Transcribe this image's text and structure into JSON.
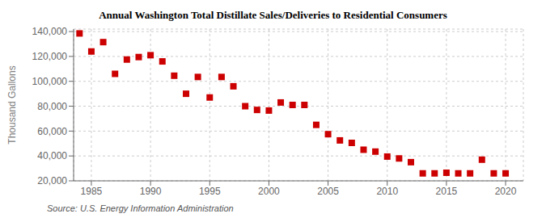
{
  "chart_data": {
    "type": "scatter",
    "title": "Annual Washington Total Distillate Sales/Deliveries to Residential Consumers",
    "ylabel": "Thousand Gallons",
    "annotation": "Source: U.S. Energy Information Administration",
    "x": [
      1984,
      1985,
      1986,
      1987,
      1988,
      1989,
      1990,
      1991,
      1992,
      1993,
      1994,
      1995,
      1996,
      1997,
      1998,
      1999,
      2000,
      2001,
      2002,
      2003,
      2004,
      2005,
      2006,
      2007,
      2008,
      2009,
      2010,
      2011,
      2012,
      2013,
      2014,
      2015,
      2016,
      2017,
      2018,
      2019,
      2020
    ],
    "values": [
      138500,
      124000,
      131500,
      106000,
      117500,
      119500,
      121000,
      116000,
      104500,
      90000,
      103500,
      87000,
      103500,
      96000,
      80000,
      77000,
      76500,
      83000,
      81000,
      81000,
      65000,
      57500,
      52500,
      50500,
      45000,
      43500,
      39500,
      38000,
      35000,
      26000,
      26000,
      26500,
      26000,
      26000,
      37000,
      26000,
      26000
    ],
    "color": "#cc0000",
    "marker": "square",
    "xlim": [
      1983.5,
      2021.5
    ],
    "ylim": [
      20000,
      142000
    ],
    "xticks": [
      1985,
      1990,
      1995,
      2000,
      2005,
      2010,
      2015,
      2020
    ],
    "yticks": [
      {
        "value": 20000,
        "label": "20,000"
      },
      {
        "value": 40000,
        "label": "40,000"
      },
      {
        "value": 60000,
        "label": "60,000"
      },
      {
        "value": 80000,
        "label": "80,000"
      },
      {
        "value": 100000,
        "label": "100,000"
      },
      {
        "value": 120000,
        "label": "120,000"
      },
      {
        "value": 140000,
        "label": "140,000"
      }
    ],
    "grid": true
  }
}
